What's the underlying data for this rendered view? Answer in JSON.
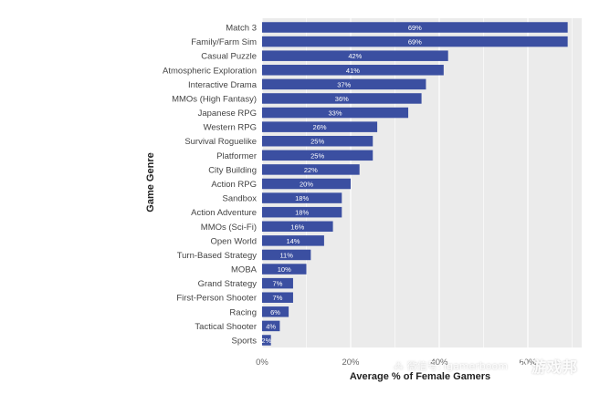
{
  "chart_data": {
    "type": "bar",
    "orientation": "horizontal",
    "xlabel": "Average % of Female Gamers",
    "ylabel": "Game Genre",
    "xlim": [
      0,
      70
    ],
    "xticks": [
      0,
      20,
      40,
      60
    ],
    "xtick_labels": [
      "0%",
      "20%",
      "40%",
      "60%"
    ],
    "grid": true,
    "colors": {
      "bar": "#3b4fa1",
      "plot_bg": "#ebebeb",
      "grid": "#ffffff"
    },
    "categories": [
      "Match 3",
      "Family/Farm Sim",
      "Casual Puzzle",
      "Atmospheric Exploration",
      "Interactive Drama",
      "MMOs (High Fantasy)",
      "Japanese RPG",
      "Western RPG",
      "Survival Roguelike",
      "Platformer",
      "City Building",
      "Action RPG",
      "Sandbox",
      "Action Adventure",
      "MMOs (Sci-Fi)",
      "Open World",
      "Turn-Based Strategy",
      "MOBA",
      "Grand Strategy",
      "First-Person Shooter",
      "Racing",
      "Tactical Shooter",
      "Sports"
    ],
    "values": [
      69,
      69,
      42,
      41,
      37,
      36,
      33,
      26,
      25,
      25,
      22,
      20,
      18,
      18,
      16,
      14,
      11,
      10,
      7,
      7,
      6,
      4,
      2
    ],
    "data_labels": [
      "69%",
      "69%",
      "42%",
      "41%",
      "37%",
      "36%",
      "33%",
      "26%",
      "25%",
      "25%",
      "22%",
      "20%",
      "18%",
      "18%",
      "16%",
      "14%",
      "11%",
      "10%",
      "7%",
      "7%",
      "6%",
      "4%",
      "2%"
    ]
  },
  "watermark": {
    "brand": "游戏邦",
    "text": "微信号: igamerboom",
    "icon": "gamerboom-logo-icon",
    "wechat_icon": "wechat-icon"
  }
}
